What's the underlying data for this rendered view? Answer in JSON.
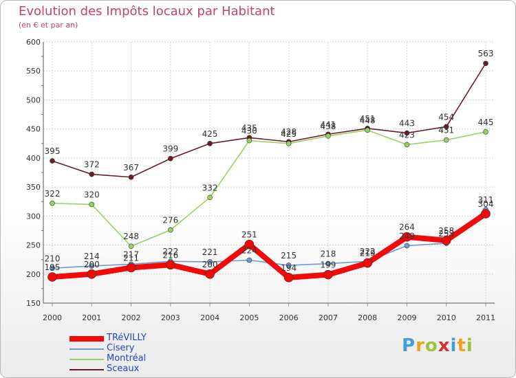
{
  "chart_data": {
    "type": "line",
    "title": "Evolution des Impôts locaux par Habitant",
    "subtitle": "(en € et par an)",
    "xlabel": "",
    "ylabel": "",
    "ylim": [
      150,
      600
    ],
    "yticks": [
      "150",
      "200",
      "250",
      "300",
      "350",
      "400",
      "450",
      "500",
      "550",
      "600"
    ],
    "categories": [
      "2000",
      "2001",
      "2002",
      "2003",
      "2004",
      "2005",
      "2006",
      "2007",
      "2008",
      "2009",
      "2010",
      "2011"
    ],
    "series": [
      {
        "name": "Sceaux",
        "color": "#6b1c24",
        "values": [
          395,
          372,
          367,
          399,
          425,
          435,
          428,
          441,
          451,
          443,
          454,
          563
        ]
      },
      {
        "name": "Montréal",
        "color": "#99d063",
        "values": [
          322,
          320,
          248,
          276,
          332,
          430,
          425,
          438,
          448,
          423,
          431,
          445
        ]
      },
      {
        "name": "Cisery",
        "color": "#6a9bd3",
        "values": [
          210,
          214,
          217,
          222,
          221,
          224,
          215,
          218,
          222,
          249,
          253,
          311
        ]
      },
      {
        "name": "TRéVILLY",
        "color": "#f00a0a",
        "values": [
          195,
          200,
          211,
          216,
          200,
          251,
          194,
          199,
          219,
          264,
          258,
          304
        ]
      }
    ],
    "legend_order": [
      "TRéVILLY",
      "Cisery",
      "Montréal",
      "Sceaux"
    ],
    "legend_position": "bottom-left"
  },
  "logo": {
    "letters": [
      "P",
      "r",
      "o",
      "x",
      "i",
      "t",
      "i"
    ],
    "colors": [
      "#3f9fd8",
      "#f0a21c",
      "#9ac43c",
      "#d72e2e",
      "#3f9fd8",
      "#f0a21c",
      "#9ac43c"
    ]
  }
}
